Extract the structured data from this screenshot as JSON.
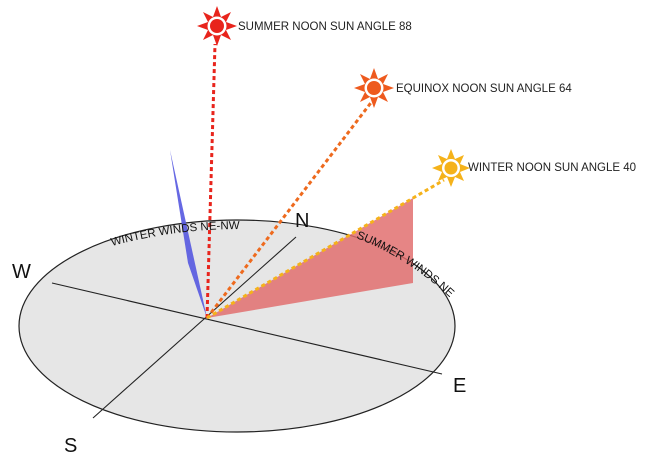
{
  "suns": {
    "summer": {
      "label": "SUMMER NOON SUN ANGLE 88",
      "angle_deg": 88,
      "color": "#e8241c",
      "ray_color": "#e8241c"
    },
    "equinox": {
      "label": "EQUINOX NOON SUN ANGLE 64",
      "angle_deg": 64,
      "color": "#ee5a1e",
      "ray_color": "#ee6a1e"
    },
    "winter": {
      "label": "WINTER NOON SUN ANGLE 40",
      "angle_deg": 40,
      "color": "#f5b21a",
      "ray_color": "#f5b21a"
    }
  },
  "winds": {
    "winter": {
      "label": "WINTER WINDS NE-NW",
      "color": "#5558e0"
    },
    "summer": {
      "label": "SUMMER WINDS NE",
      "color": "#e06a6a"
    }
  },
  "directions": {
    "north": "N",
    "south": "S",
    "east": "E",
    "west": "W"
  },
  "colors": {
    "ground": "#e6e6e6",
    "ground_stroke": "#222222"
  }
}
